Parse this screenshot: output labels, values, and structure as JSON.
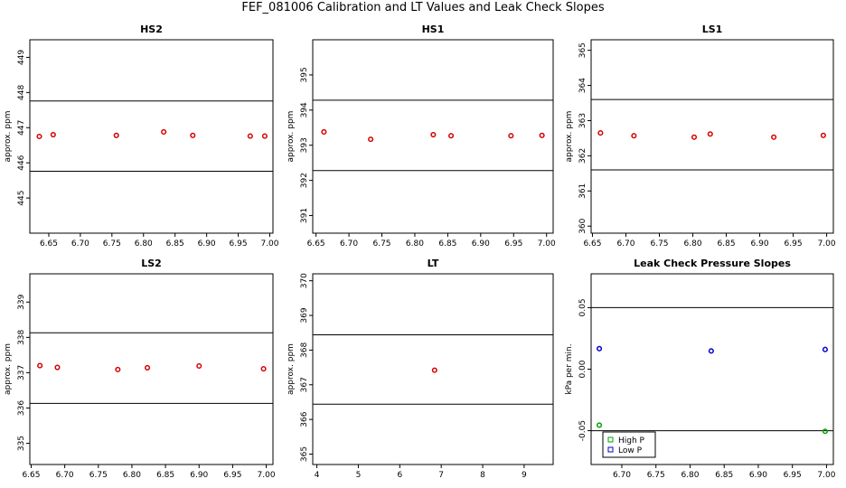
{
  "main_title": "FEF_081006  Calibration and LT Values and Leak Check Slopes",
  "chart_data": [
    {
      "type": "scatter",
      "title": "HS2",
      "ylabel": "approx. ppm",
      "xlim": [
        6.62,
        7.005
      ],
      "ylim": [
        444.0,
        449.5
      ],
      "xticks": [
        "6.65",
        "6.70",
        "6.75",
        "6.80",
        "6.85",
        "6.90",
        "6.95",
        "7.00"
      ],
      "xtick_values": [
        6.65,
        6.7,
        6.75,
        6.8,
        6.85,
        6.9,
        6.95,
        7.0
      ],
      "yticks": [
        "445",
        "446",
        "447",
        "448",
        "449"
      ],
      "ytick_values": [
        445,
        446,
        447,
        448,
        449
      ],
      "hlines": [
        447.76,
        445.76
      ],
      "series": [
        {
          "color": "#d40000",
          "x": [
            6.635,
            6.657,
            6.757,
            6.832,
            6.878,
            6.969,
            6.992
          ],
          "y": [
            446.75,
            446.8,
            446.78,
            446.88,
            446.78,
            446.76,
            446.76
          ]
        }
      ]
    },
    {
      "type": "scatter",
      "title": "HS1",
      "ylabel": "approx. ppm",
      "xlim": [
        6.645,
        7.01
      ],
      "ylim": [
        390.5,
        396.0
      ],
      "xticks": [
        "6.65",
        "6.70",
        "6.75",
        "6.80",
        "6.85",
        "6.90",
        "6.95",
        "7.00"
      ],
      "xtick_values": [
        6.65,
        6.7,
        6.75,
        6.8,
        6.85,
        6.9,
        6.95,
        7.0
      ],
      "yticks": [
        "391",
        "392",
        "393",
        "394",
        "395"
      ],
      "ytick_values": [
        391,
        392,
        393,
        394,
        395
      ],
      "hlines": [
        394.28,
        392.28
      ],
      "series": [
        {
          "color": "#d40000",
          "x": [
            6.662,
            6.733,
            6.828,
            6.855,
            6.946,
            6.993
          ],
          "y": [
            393.38,
            393.17,
            393.3,
            393.27,
            393.27,
            393.28
          ]
        }
      ]
    },
    {
      "type": "scatter",
      "title": "LS1",
      "ylabel": "approx. ppm",
      "xlim": [
        6.648,
        7.01
      ],
      "ylim": [
        359.8,
        365.3
      ],
      "xticks": [
        "6.65",
        "6.70",
        "6.75",
        "6.80",
        "6.85",
        "6.90",
        "6.95",
        "7.00"
      ],
      "xtick_values": [
        6.65,
        6.7,
        6.75,
        6.8,
        6.85,
        6.9,
        6.95,
        7.0
      ],
      "yticks": [
        "360",
        "361",
        "362",
        "363",
        "364",
        "365"
      ],
      "ytick_values": [
        360,
        361,
        362,
        363,
        364,
        365
      ],
      "hlines": [
        363.6,
        361.6
      ],
      "series": [
        {
          "color": "#d40000",
          "x": [
            6.662,
            6.712,
            6.802,
            6.826,
            6.921,
            6.995
          ],
          "y": [
            362.65,
            362.57,
            362.53,
            362.62,
            362.53,
            362.58
          ]
        }
      ]
    },
    {
      "type": "scatter",
      "title": "LS2",
      "ylabel": "approx. ppm",
      "xlim": [
        6.648,
        7.01
      ],
      "ylim": [
        334.4,
        339.8
      ],
      "xticks": [
        "6.65",
        "6.70",
        "6.75",
        "6.80",
        "6.85",
        "6.90",
        "6.95",
        "7.00"
      ],
      "xtick_values": [
        6.65,
        6.7,
        6.75,
        6.8,
        6.85,
        6.9,
        6.95,
        7.0
      ],
      "yticks": [
        "335",
        "336",
        "337",
        "338",
        "339"
      ],
      "ytick_values": [
        335,
        336,
        337,
        338,
        339
      ],
      "hlines": [
        338.13,
        336.13
      ],
      "series": [
        {
          "color": "#d40000",
          "x": [
            6.663,
            6.689,
            6.779,
            6.823,
            6.9,
            6.996
          ],
          "y": [
            337.2,
            337.15,
            337.09,
            337.14,
            337.19,
            337.11
          ]
        }
      ]
    },
    {
      "type": "scatter",
      "title": "LT",
      "ylabel": "approx. ppm",
      "xlim": [
        3.9,
        9.7
      ],
      "ylim": [
        364.7,
        370.2
      ],
      "xticks": [
        "4",
        "5",
        "6",
        "7",
        "8",
        "9"
      ],
      "xtick_values": [
        4,
        5,
        6,
        7,
        8,
        9
      ],
      "yticks": [
        "365",
        "366",
        "367",
        "368",
        "369",
        "370"
      ],
      "ytick_values": [
        365,
        366,
        367,
        368,
        369,
        370
      ],
      "hlines": [
        368.44,
        366.44
      ],
      "series": [
        {
          "color": "#d40000",
          "x": [
            6.84
          ],
          "y": [
            367.42
          ]
        }
      ]
    },
    {
      "type": "scatter",
      "title": "Leak Check Pressure Slopes",
      "ylabel": "kPa per min.",
      "xlim": [
        6.655,
        7.01
      ],
      "ylim": [
        -0.0775,
        0.0775
      ],
      "xticks": [
        "6.70",
        "6.75",
        "6.80",
        "6.85",
        "6.90",
        "6.95",
        "7.00"
      ],
      "xtick_values": [
        6.7,
        6.75,
        6.8,
        6.85,
        6.9,
        6.95,
        7.0
      ],
      "yticks": [
        "-0.05",
        "0.00",
        "0.05"
      ],
      "ytick_values": [
        -0.05,
        0.0,
        0.05
      ],
      "hlines": [
        0.05,
        -0.05
      ],
      "legend": {
        "position": "bottom-left"
      },
      "series": [
        {
          "name": "High P",
          "color": "#00a000",
          "x": [
            6.667,
            6.998
          ],
          "y": [
            -0.0455,
            -0.0505
          ]
        },
        {
          "name": "Low P",
          "color": "#0000cc",
          "x": [
            6.667,
            6.831,
            6.998
          ],
          "y": [
            0.0167,
            0.0148,
            0.016
          ]
        }
      ]
    }
  ]
}
